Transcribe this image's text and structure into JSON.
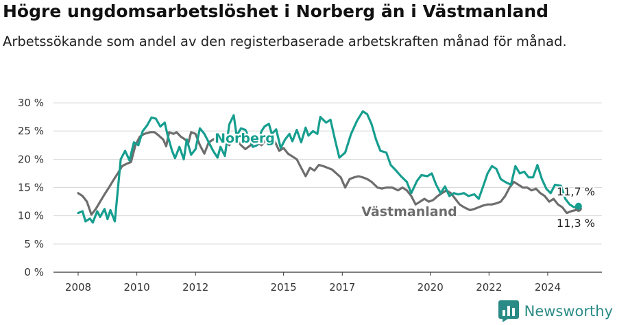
{
  "header": {
    "title": "Högre ungdomsarbetslöshet i Norberg än i Västmanland",
    "subtitle": "Arbetssökande som andel av den registerbaserade arbetskraften månad för månad."
  },
  "brand": {
    "name": "Newsworthy",
    "color": "#2a8a86"
  },
  "chart_data": {
    "type": "line",
    "y_tick_labels": [
      "0 %",
      "5 %",
      "10 %",
      "15 %",
      "20 %",
      "25 %",
      "30 %"
    ],
    "y_ticks": [
      0,
      5,
      10,
      15,
      20,
      25,
      30
    ],
    "x_tick_labels": [
      "2008",
      "2010",
      "2012",
      "2015",
      "2017",
      "2020",
      "2022",
      "2024"
    ],
    "x_ticks": [
      2008,
      2010,
      2012,
      2015,
      2017,
      2020,
      2022,
      2024
    ],
    "xlim": [
      2008,
      2025.1
    ],
    "ylim": [
      0,
      30
    ],
    "grid": true,
    "series": [
      {
        "name": "Norberg",
        "color": "#169e8f",
        "end_label": "11,7 %",
        "points": [
          [
            2008.0,
            10.5
          ],
          [
            2008.15,
            10.8
          ],
          [
            2008.25,
            9.0
          ],
          [
            2008.4,
            9.5
          ],
          [
            2008.5,
            8.8
          ],
          [
            2008.65,
            10.8
          ],
          [
            2008.75,
            9.8
          ],
          [
            2008.9,
            11.2
          ],
          [
            2009.0,
            9.4
          ],
          [
            2009.1,
            11.0
          ],
          [
            2009.25,
            9.0
          ],
          [
            2009.45,
            20.0
          ],
          [
            2009.6,
            21.5
          ],
          [
            2009.75,
            19.8
          ],
          [
            2009.9,
            23.0
          ],
          [
            2010.05,
            22.5
          ],
          [
            2010.2,
            25.0
          ],
          [
            2010.35,
            26.0
          ],
          [
            2010.5,
            27.4
          ],
          [
            2010.65,
            27.2
          ],
          [
            2010.8,
            25.8
          ],
          [
            2010.95,
            26.5
          ],
          [
            2011.05,
            24.2
          ],
          [
            2011.2,
            21.5
          ],
          [
            2011.3,
            20.2
          ],
          [
            2011.45,
            22.2
          ],
          [
            2011.6,
            20.0
          ],
          [
            2011.7,
            23.5
          ],
          [
            2011.85,
            20.8
          ],
          [
            2012.0,
            21.8
          ],
          [
            2012.15,
            25.5
          ],
          [
            2012.3,
            24.5
          ],
          [
            2012.45,
            23.0
          ],
          [
            2012.6,
            21.5
          ],
          [
            2012.75,
            20.3
          ],
          [
            2012.85,
            22.2
          ],
          [
            2013.0,
            20.6
          ],
          [
            2013.15,
            26.2
          ],
          [
            2013.3,
            27.8
          ],
          [
            2013.4,
            24.2
          ],
          [
            2013.55,
            25.5
          ],
          [
            2013.7,
            25.2
          ],
          [
            2013.85,
            23.5
          ],
          [
            2013.95,
            22.2
          ],
          [
            2014.1,
            22.5
          ],
          [
            2014.25,
            25.0
          ],
          [
            2014.35,
            25.8
          ],
          [
            2014.5,
            26.3
          ],
          [
            2014.6,
            24.5
          ],
          [
            2014.75,
            25.3
          ],
          [
            2014.9,
            22.0
          ],
          [
            2015.05,
            23.5
          ],
          [
            2015.2,
            24.5
          ],
          [
            2015.3,
            23.2
          ],
          [
            2015.45,
            25.2
          ],
          [
            2015.6,
            23.0
          ],
          [
            2015.75,
            25.6
          ],
          [
            2015.85,
            24.2
          ],
          [
            2016.0,
            25.0
          ],
          [
            2016.15,
            24.5
          ],
          [
            2016.25,
            27.5
          ],
          [
            2016.45,
            26.5
          ],
          [
            2016.6,
            27.0
          ],
          [
            2016.75,
            23.5
          ],
          [
            2016.9,
            20.3
          ],
          [
            2017.1,
            21.2
          ],
          [
            2017.3,
            24.5
          ],
          [
            2017.5,
            26.8
          ],
          [
            2017.7,
            28.5
          ],
          [
            2017.85,
            28.0
          ],
          [
            2018.0,
            26.2
          ],
          [
            2018.15,
            23.5
          ],
          [
            2018.3,
            21.5
          ],
          [
            2018.5,
            21.2
          ],
          [
            2018.65,
            19.0
          ],
          [
            2018.8,
            18.2
          ],
          [
            2019.0,
            17.0
          ],
          [
            2019.2,
            16.0
          ],
          [
            2019.35,
            14.0
          ],
          [
            2019.55,
            16.2
          ],
          [
            2019.7,
            17.2
          ],
          [
            2019.9,
            17.0
          ],
          [
            2020.05,
            17.5
          ],
          [
            2020.2,
            15.5
          ],
          [
            2020.35,
            14.0
          ],
          [
            2020.5,
            15.2
          ],
          [
            2020.65,
            13.5
          ],
          [
            2020.8,
            14.0
          ],
          [
            2020.95,
            13.8
          ],
          [
            2021.15,
            14.0
          ],
          [
            2021.3,
            13.5
          ],
          [
            2021.5,
            13.8
          ],
          [
            2021.65,
            13.0
          ],
          [
            2021.8,
            15.2
          ],
          [
            2021.95,
            17.5
          ],
          [
            2022.1,
            18.8
          ],
          [
            2022.25,
            18.3
          ],
          [
            2022.4,
            16.5
          ],
          [
            2022.55,
            16.0
          ],
          [
            2022.75,
            15.5
          ],
          [
            2022.9,
            18.8
          ],
          [
            2023.05,
            17.5
          ],
          [
            2023.2,
            17.8
          ],
          [
            2023.35,
            16.8
          ],
          [
            2023.5,
            16.8
          ],
          [
            2023.65,
            19.0
          ],
          [
            2023.8,
            16.5
          ],
          [
            2023.95,
            14.8
          ],
          [
            2024.1,
            14.0
          ],
          [
            2024.25,
            15.5
          ],
          [
            2024.45,
            15.3
          ],
          [
            2024.6,
            13.0
          ],
          [
            2024.75,
            12.0
          ],
          [
            2024.9,
            11.5
          ],
          [
            2025.05,
            11.7
          ]
        ]
      },
      {
        "name": "Västmanland",
        "color": "#6d6d6d",
        "end_label": "11,3 %",
        "points": [
          [
            2008.0,
            14.0
          ],
          [
            2008.15,
            13.5
          ],
          [
            2008.3,
            12.5
          ],
          [
            2008.45,
            10.2
          ],
          [
            2008.6,
            11.2
          ],
          [
            2008.75,
            12.5
          ],
          [
            2008.9,
            13.8
          ],
          [
            2009.05,
            15.0
          ],
          [
            2009.2,
            16.3
          ],
          [
            2009.35,
            17.5
          ],
          [
            2009.5,
            18.8
          ],
          [
            2009.65,
            19.2
          ],
          [
            2009.8,
            19.5
          ],
          [
            2009.95,
            22.5
          ],
          [
            2010.1,
            24.0
          ],
          [
            2010.25,
            24.5
          ],
          [
            2010.45,
            24.8
          ],
          [
            2010.6,
            24.8
          ],
          [
            2010.75,
            24.2
          ],
          [
            2010.9,
            23.5
          ],
          [
            2011.0,
            22.3
          ],
          [
            2011.1,
            24.8
          ],
          [
            2011.25,
            24.5
          ],
          [
            2011.35,
            24.8
          ],
          [
            2011.5,
            24.0
          ],
          [
            2011.65,
            23.5
          ],
          [
            2011.75,
            22.8
          ],
          [
            2011.85,
            24.8
          ],
          [
            2012.0,
            24.5
          ],
          [
            2012.15,
            22.5
          ],
          [
            2012.3,
            21.0
          ],
          [
            2012.45,
            23.0
          ],
          [
            2012.6,
            23.5
          ],
          [
            2012.75,
            23.8
          ],
          [
            2012.9,
            24.2
          ],
          [
            2013.05,
            23.5
          ],
          [
            2013.15,
            22.5
          ],
          [
            2013.3,
            24.0
          ],
          [
            2013.4,
            23.5
          ],
          [
            2013.55,
            22.5
          ],
          [
            2013.7,
            21.8
          ],
          [
            2013.8,
            22.2
          ],
          [
            2013.95,
            22.8
          ],
          [
            2014.1,
            23.0
          ],
          [
            2014.25,
            22.5
          ],
          [
            2014.4,
            23.5
          ],
          [
            2014.55,
            23.0
          ],
          [
            2014.7,
            23.2
          ],
          [
            2014.85,
            21.5
          ],
          [
            2015.0,
            22.0
          ],
          [
            2015.15,
            21.0
          ],
          [
            2015.3,
            20.5
          ],
          [
            2015.45,
            20.0
          ],
          [
            2015.6,
            18.5
          ],
          [
            2015.75,
            17.0
          ],
          [
            2015.9,
            18.5
          ],
          [
            2016.05,
            18.0
          ],
          [
            2016.2,
            19.0
          ],
          [
            2016.35,
            18.8
          ],
          [
            2016.5,
            18.5
          ],
          [
            2016.65,
            18.2
          ],
          [
            2016.8,
            17.5
          ],
          [
            2016.95,
            16.8
          ],
          [
            2017.1,
            15.0
          ],
          [
            2017.25,
            16.5
          ],
          [
            2017.4,
            16.8
          ],
          [
            2017.55,
            17.0
          ],
          [
            2017.7,
            16.8
          ],
          [
            2017.85,
            16.5
          ],
          [
            2018.0,
            16.0
          ],
          [
            2018.2,
            15.0
          ],
          [
            2018.35,
            14.8
          ],
          [
            2018.5,
            15.0
          ],
          [
            2018.7,
            15.0
          ],
          [
            2018.9,
            14.5
          ],
          [
            2019.05,
            15.0
          ],
          [
            2019.2,
            14.5
          ],
          [
            2019.35,
            13.5
          ],
          [
            2019.5,
            12.0
          ],
          [
            2019.65,
            12.5
          ],
          [
            2019.8,
            13.0
          ],
          [
            2019.95,
            12.5
          ],
          [
            2020.1,
            12.8
          ],
          [
            2020.25,
            13.5
          ],
          [
            2020.4,
            14.0
          ],
          [
            2020.55,
            14.5
          ],
          [
            2020.7,
            14.0
          ],
          [
            2020.85,
            13.0
          ],
          [
            2021.0,
            12.0
          ],
          [
            2021.15,
            11.5
          ],
          [
            2021.35,
            11.0
          ],
          [
            2021.5,
            11.2
          ],
          [
            2021.65,
            11.5
          ],
          [
            2021.8,
            11.8
          ],
          [
            2021.95,
            12.0
          ],
          [
            2022.1,
            12.0
          ],
          [
            2022.25,
            12.2
          ],
          [
            2022.4,
            12.5
          ],
          [
            2022.55,
            13.5
          ],
          [
            2022.7,
            15.0
          ],
          [
            2022.85,
            16.0
          ],
          [
            2023.0,
            15.5
          ],
          [
            2023.15,
            15.0
          ],
          [
            2023.3,
            15.0
          ],
          [
            2023.45,
            14.5
          ],
          [
            2023.6,
            14.8
          ],
          [
            2023.75,
            14.0
          ],
          [
            2023.9,
            13.5
          ],
          [
            2024.05,
            12.5
          ],
          [
            2024.2,
            13.0
          ],
          [
            2024.35,
            12.0
          ],
          [
            2024.5,
            11.5
          ],
          [
            2024.65,
            10.5
          ],
          [
            2024.8,
            10.8
          ],
          [
            2024.95,
            11.0
          ],
          [
            2025.05,
            11.3
          ]
        ]
      }
    ]
  }
}
